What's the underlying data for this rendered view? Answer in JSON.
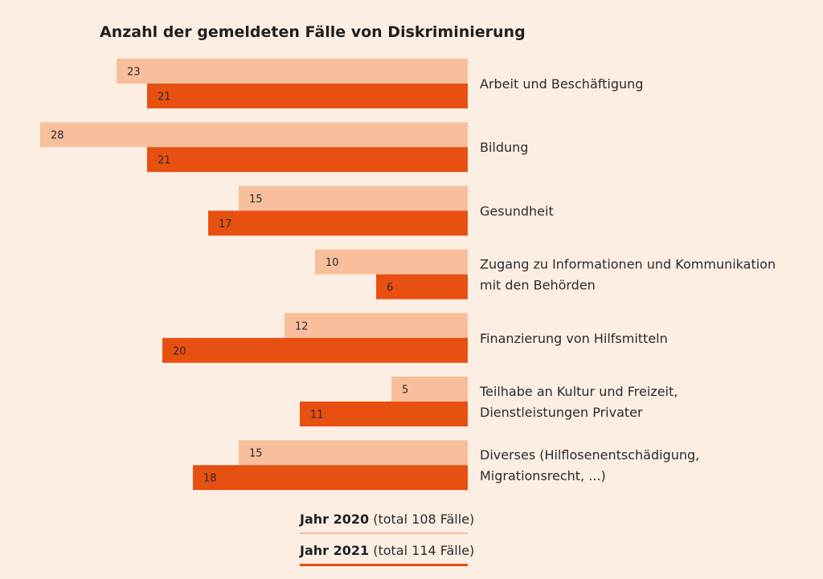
{
  "chart_data": {
    "type": "bar",
    "orientation": "horizontal",
    "title": "Anzahl der gemeldeten Fälle von Diskriminierung",
    "categories": [
      [
        "Arbeit und Beschäftigung"
      ],
      [
        "Bildung"
      ],
      [
        "Gesundheit"
      ],
      [
        "Zugang zu Informationen und Kommunikation",
        "mit den Behörden"
      ],
      [
        "Finanzierung von Hilfsmitteln"
      ],
      [
        "Teilhabe an Kultur und Freizeit,",
        "Dienstleistungen Privater"
      ],
      [
        "Diverses (Hilflosenentschädigung,",
        "Migrationsrecht, ...)"
      ]
    ],
    "series": [
      {
        "name": "Jahr 2020",
        "values": [
          23,
          28,
          15,
          10,
          12,
          5,
          15
        ],
        "color": "#f7bf9b"
      },
      {
        "name": "Jahr 2021",
        "values": [
          21,
          21,
          17,
          6,
          20,
          11,
          18
        ],
        "color": "#e75011"
      }
    ],
    "legend": [
      {
        "year": "Jahr 2020",
        "total": "(total 108 Fälle)",
        "color": "#f7bf9b"
      },
      {
        "year": "Jahr 2021",
        "total": "(total 114 Fälle)",
        "color": "#e75011"
      }
    ],
    "xlim": [
      0,
      28
    ],
    "legend_position": "bottom"
  }
}
